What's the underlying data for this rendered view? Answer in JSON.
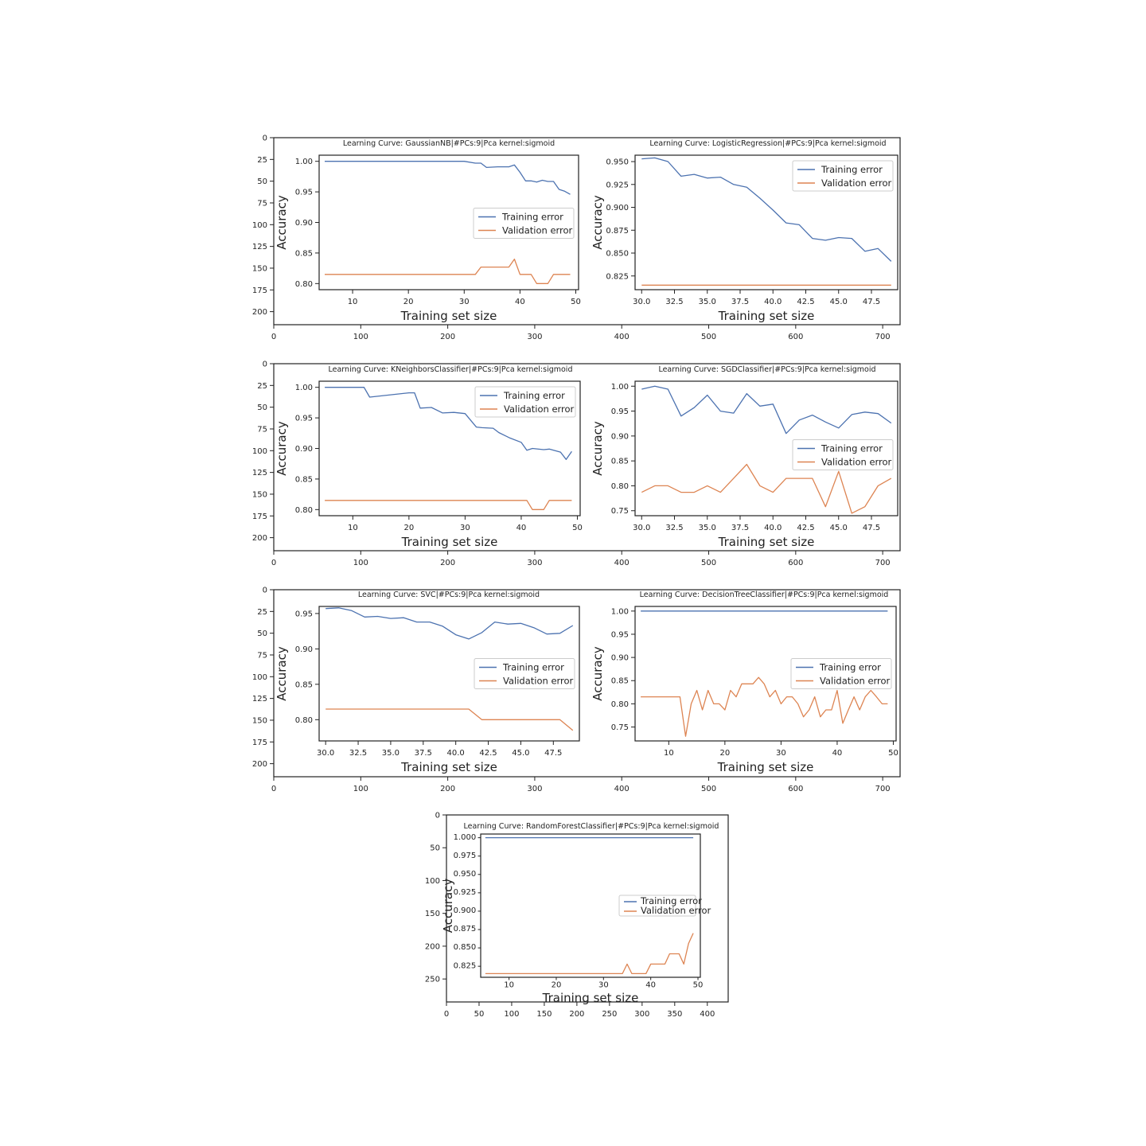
{
  "colors": {
    "training": "#4c72b0",
    "validation": "#dd8452"
  },
  "figure_axes": [
    {
      "xticks": [
        0,
        100,
        200,
        300,
        400,
        500,
        600,
        700
      ],
      "yticks": [
        0,
        25,
        50,
        75,
        100,
        125,
        150,
        175,
        200
      ]
    },
    {
      "xticks": [
        0,
        100,
        200,
        300,
        400,
        500,
        600,
        700
      ],
      "yticks": [
        0,
        25,
        50,
        75,
        100,
        125,
        150,
        175,
        200
      ]
    },
    {
      "xticks": [
        0,
        100,
        200,
        300,
        400,
        500,
        600,
        700
      ],
      "yticks": [
        0,
        25,
        50,
        75,
        100,
        125,
        150,
        175,
        200
      ]
    },
    {
      "xticks": [
        0,
        50,
        100,
        150,
        200,
        250,
        300,
        350,
        400
      ],
      "yticks": [
        0,
        50,
        100,
        150,
        200,
        250
      ]
    }
  ],
  "chart_data": [
    {
      "type": "line",
      "title": "Learning Curve: GaussianNB|#PCs:9|Pca kernel:sigmoid",
      "xlabel": "Training set size",
      "ylabel": "Accuracy",
      "xlim": [
        4,
        50.5
      ],
      "ylim": [
        0.79,
        1.01
      ],
      "xticks": [
        "10",
        "20",
        "30",
        "40",
        "50"
      ],
      "xtick_values": [
        10,
        20,
        30,
        40,
        50
      ],
      "yticks": [
        "1.00",
        "0.95",
        "0.90",
        "0.85",
        "0.80"
      ],
      "ytick_values": [
        1.0,
        0.95,
        0.9,
        0.85,
        0.8
      ],
      "legend": "center-right",
      "series": [
        {
          "name": "Training error",
          "x": [
            5,
            10,
            15,
            20,
            25,
            30,
            32,
            33,
            34,
            36,
            37,
            38,
            39,
            40,
            41,
            42,
            43,
            44,
            45,
            46,
            47,
            48,
            49
          ],
          "y": [
            1.0,
            1.0,
            1.0,
            1.0,
            1.0,
            1.0,
            0.997,
            0.997,
            0.99,
            0.991,
            0.991,
            0.991,
            0.994,
            0.982,
            0.968,
            0.968,
            0.966,
            0.969,
            0.967,
            0.967,
            0.954,
            0.951,
            0.946
          ]
        },
        {
          "name": "Validation error",
          "x": [
            5,
            32,
            33,
            38,
            39,
            40,
            42,
            43,
            45,
            46,
            49
          ],
          "y": [
            0.815,
            0.815,
            0.827,
            0.827,
            0.84,
            0.815,
            0.815,
            0.8,
            0.8,
            0.815,
            0.815
          ]
        }
      ]
    },
    {
      "type": "line",
      "title": "Learning Curve: LogisticRegression|#PCs:9|Pca kernel:sigmoid",
      "xlabel": "Training set size",
      "ylabel": "Accuracy",
      "xlim": [
        29.5,
        49.5
      ],
      "ylim": [
        0.81,
        0.957
      ],
      "xticks": [
        "30.0",
        "32.5",
        "35.0",
        "37.5",
        "40.0",
        "42.5",
        "45.0",
        "47.5"
      ],
      "xtick_values": [
        30,
        32.5,
        35,
        37.5,
        40,
        42.5,
        45,
        47.5
      ],
      "yticks": [
        "0.950",
        "0.925",
        "0.900",
        "0.875",
        "0.850",
        "0.825"
      ],
      "ytick_values": [
        0.95,
        0.925,
        0.9,
        0.875,
        0.85,
        0.825
      ],
      "legend": "top-right",
      "series": [
        {
          "name": "Training error",
          "x": [
            30,
            31,
            32,
            33,
            34,
            35,
            36,
            37,
            38,
            39,
            40,
            41,
            42,
            43,
            44,
            45,
            46,
            47,
            48,
            49
          ],
          "y": [
            0.953,
            0.954,
            0.95,
            0.934,
            0.936,
            0.932,
            0.933,
            0.925,
            0.922,
            0.91,
            0.897,
            0.883,
            0.881,
            0.866,
            0.864,
            0.867,
            0.866,
            0.852,
            0.855,
            0.841
          ]
        },
        {
          "name": "Validation error",
          "x": [
            30,
            49
          ],
          "y": [
            0.815,
            0.815
          ]
        }
      ]
    },
    {
      "type": "line",
      "title": "Learning Curve: KNeighborsClassifier|#PCs:9|Pca kernel:sigmoid",
      "xlabel": "Training set size",
      "ylabel": "Accuracy",
      "xlim": [
        4,
        50.5
      ],
      "ylim": [
        0.79,
        1.01
      ],
      "xticks": [
        "10",
        "20",
        "30",
        "40",
        "50"
      ],
      "xtick_values": [
        10,
        20,
        30,
        40,
        50
      ],
      "yticks": [
        "1.00",
        "0.95",
        "0.90",
        "0.85",
        "0.80"
      ],
      "ytick_values": [
        1.0,
        0.95,
        0.9,
        0.85,
        0.8
      ],
      "legend": "top-right",
      "series": [
        {
          "name": "Training error",
          "x": [
            5,
            12,
            13,
            20,
            21,
            22,
            24,
            26,
            28,
            30,
            32,
            33,
            35,
            36,
            38,
            40,
            41,
            42,
            44,
            45,
            47,
            48,
            49
          ],
          "y": [
            1.0,
            1.0,
            0.984,
            0.991,
            0.991,
            0.966,
            0.967,
            0.958,
            0.959,
            0.957,
            0.935,
            0.934,
            0.933,
            0.926,
            0.917,
            0.91,
            0.897,
            0.9,
            0.898,
            0.899,
            0.894,
            0.882,
            0.895
          ]
        },
        {
          "name": "Validation error",
          "x": [
            5,
            41,
            42,
            44,
            45,
            49
          ],
          "y": [
            0.815,
            0.815,
            0.8,
            0.8,
            0.815,
            0.815
          ]
        }
      ]
    },
    {
      "type": "line",
      "title": "Learning Curve: SGDClassifier|#PCs:9|Pca kernel:sigmoid",
      "xlabel": "Training set size",
      "ylabel": "Accuracy",
      "xlim": [
        29.5,
        49.5
      ],
      "ylim": [
        0.74,
        1.01
      ],
      "xticks": [
        "30.0",
        "32.5",
        "35.0",
        "37.5",
        "40.0",
        "42.5",
        "45.0",
        "47.5"
      ],
      "xtick_values": [
        30,
        32.5,
        35,
        37.5,
        40,
        42.5,
        45,
        47.5
      ],
      "yticks": [
        "1.00",
        "0.95",
        "0.90",
        "0.85",
        "0.80",
        "0.75"
      ],
      "ytick_values": [
        1.0,
        0.95,
        0.9,
        0.85,
        0.8,
        0.75
      ],
      "legend": "center-right",
      "series": [
        {
          "name": "Training error",
          "x": [
            30,
            31,
            32,
            33,
            34,
            35,
            36,
            37,
            38,
            39,
            40,
            41,
            42,
            43,
            44,
            45,
            46,
            47,
            48,
            49
          ],
          "y": [
            0.994,
            1.0,
            0.994,
            0.94,
            0.957,
            0.982,
            0.95,
            0.946,
            0.985,
            0.96,
            0.964,
            0.905,
            0.932,
            0.942,
            0.928,
            0.916,
            0.943,
            0.948,
            0.945,
            0.926
          ]
        },
        {
          "name": "Validation error",
          "x": [
            30,
            31,
            32,
            33,
            34,
            35,
            36,
            37,
            38,
            39,
            40,
            41,
            42,
            43,
            44,
            45,
            46,
            47,
            48,
            49
          ],
          "y": [
            0.787,
            0.8,
            0.8,
            0.787,
            0.787,
            0.8,
            0.787,
            0.815,
            0.843,
            0.8,
            0.787,
            0.815,
            0.815,
            0.815,
            0.758,
            0.829,
            0.745,
            0.758,
            0.8,
            0.815
          ]
        }
      ]
    },
    {
      "type": "line",
      "title": "Learning Curve: SVC|#PCs:9|Pca kernel:sigmoid",
      "xlabel": "Training set size",
      "ylabel": "Accuracy",
      "xlim": [
        29.5,
        49.5
      ],
      "ylim": [
        0.77,
        0.96
      ],
      "xticks": [
        "30.0",
        "32.5",
        "35.0",
        "37.5",
        "40.0",
        "42.5",
        "45.0",
        "47.5"
      ],
      "xtick_values": [
        30,
        32.5,
        35,
        37.5,
        40,
        42.5,
        45,
        47.5
      ],
      "yticks": [
        "0.95",
        "0.90",
        "0.85",
        "0.80"
      ],
      "ytick_values": [
        0.95,
        0.9,
        0.85,
        0.8
      ],
      "legend": "center-right",
      "series": [
        {
          "name": "Training error",
          "x": [
            30,
            31,
            32,
            33,
            34,
            35,
            36,
            37,
            38,
            39,
            40,
            41,
            42,
            43,
            44,
            45,
            46,
            47,
            48,
            49
          ],
          "y": [
            0.957,
            0.958,
            0.954,
            0.945,
            0.946,
            0.943,
            0.944,
            0.938,
            0.938,
            0.932,
            0.92,
            0.914,
            0.923,
            0.938,
            0.935,
            0.936,
            0.93,
            0.921,
            0.922,
            0.933
          ]
        },
        {
          "name": "Validation error",
          "x": [
            30,
            41,
            42,
            48,
            49
          ],
          "y": [
            0.815,
            0.815,
            0.8,
            0.8,
            0.785
          ]
        }
      ]
    },
    {
      "type": "line",
      "title": "Learning Curve: DecisionTreeClassifier|#PCs:9|Pca kernel:sigmoid",
      "xlabel": "Training set size",
      "ylabel": "Accuracy",
      "xlim": [
        4,
        50.5
      ],
      "ylim": [
        0.72,
        1.01
      ],
      "xticks": [
        "10",
        "20",
        "30",
        "40",
        "50"
      ],
      "xtick_values": [
        10,
        20,
        30,
        40,
        50
      ],
      "yticks": [
        "1.00",
        "0.95",
        "0.90",
        "0.85",
        "0.80",
        "0.75"
      ],
      "ytick_values": [
        1.0,
        0.95,
        0.9,
        0.85,
        0.8,
        0.75
      ],
      "legend": "center-right",
      "series": [
        {
          "name": "Training error",
          "x": [
            5,
            49
          ],
          "y": [
            1.0,
            1.0
          ]
        },
        {
          "name": "Validation error",
          "x": [
            5,
            6,
            7,
            8,
            9,
            10,
            11,
            12,
            13,
            14,
            15,
            16,
            17,
            18,
            19,
            20,
            21,
            22,
            23,
            24,
            25,
            26,
            27,
            28,
            29,
            30,
            31,
            32,
            33,
            34,
            35,
            36,
            37,
            38,
            39,
            40,
            41,
            42,
            43,
            44,
            45,
            46,
            47,
            48,
            49
          ],
          "y": [
            0.815,
            0.815,
            0.815,
            0.815,
            0.815,
            0.815,
            0.815,
            0.815,
            0.73,
            0.8,
            0.829,
            0.787,
            0.829,
            0.8,
            0.8,
            0.787,
            0.829,
            0.815,
            0.843,
            0.843,
            0.843,
            0.857,
            0.843,
            0.815,
            0.829,
            0.8,
            0.815,
            0.815,
            0.8,
            0.772,
            0.787,
            0.815,
            0.772,
            0.787,
            0.787,
            0.829,
            0.758,
            0.787,
            0.815,
            0.787,
            0.815,
            0.829,
            0.815,
            0.8,
            0.8
          ]
        }
      ]
    },
    {
      "type": "line",
      "title": "Learning Curve: RandomForestClassifier|#PCs:9|Pca kernel:sigmoid",
      "xlabel": "Training set size",
      "ylabel": "Accuracy",
      "xlim": [
        4,
        50.5
      ],
      "ylim": [
        0.81,
        1.005
      ],
      "xticks": [
        "10",
        "20",
        "30",
        "40",
        "50"
      ],
      "xtick_values": [
        10,
        20,
        30,
        40,
        50
      ],
      "yticks": [
        "1.000",
        "0.975",
        "0.950",
        "0.925",
        "0.900",
        "0.875",
        "0.850",
        "0.825"
      ],
      "ytick_values": [
        1.0,
        0.975,
        0.95,
        0.925,
        0.9,
        0.875,
        0.85,
        0.825
      ],
      "legend": "center-right",
      "series": [
        {
          "name": "Training error",
          "x": [
            5,
            49
          ],
          "y": [
            1.0,
            1.0
          ]
        },
        {
          "name": "Validation error",
          "x": [
            5,
            34,
            35,
            36,
            39,
            40,
            43,
            44,
            46,
            47,
            48,
            49
          ],
          "y": [
            0.815,
            0.815,
            0.828,
            0.815,
            0.815,
            0.828,
            0.828,
            0.842,
            0.842,
            0.828,
            0.856,
            0.87
          ]
        }
      ]
    }
  ]
}
